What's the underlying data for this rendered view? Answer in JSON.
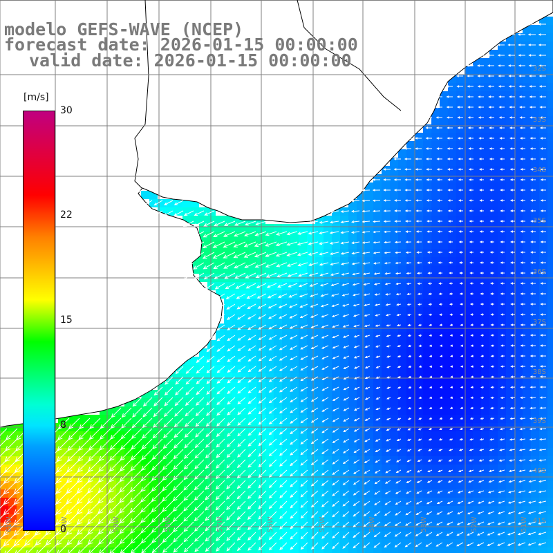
{
  "header": {
    "line1": "modelo GEFS-WAVE (NCEP)",
    "line2": "forecast date: 2026-01-15 00:00:00",
    "line3": "valid date: 2026-01-15 00:00:00"
  },
  "colorbar": {
    "unit": "[m/s]",
    "ticks": [
      "30",
      "22",
      "15",
      "8",
      "0"
    ],
    "range": [
      0,
      30
    ],
    "colors": [
      "#0000ff",
      "#00a0ff",
      "#00ffff",
      "#00ff00",
      "#ffff00",
      "#ff8000",
      "#ff0000",
      "#c00080"
    ]
  },
  "map": {
    "grid_color": "#7f7f7f",
    "coast_color": "#000000",
    "land_color": "#ffffff",
    "arrow_color": "#ffffff",
    "lat_labels": [
      "32S",
      "33S",
      "34S",
      "35S",
      "36S",
      "37S",
      "38S",
      "39S",
      "40S",
      "41S"
    ],
    "lon_labels": [
      "61W",
      "60W",
      "59W",
      "58W",
      "57W",
      "56W",
      "55W",
      "54W",
      "53W",
      "52W",
      "51W"
    ]
  }
}
